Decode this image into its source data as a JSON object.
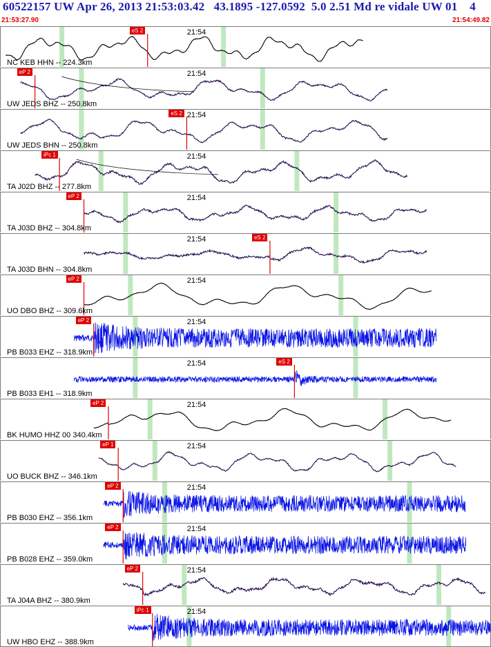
{
  "header": {
    "title": "60522157 UW Apr 26, 2013 21:53:03.42   43.1895 -127.0592  5.0 2.51 Md re vidale UW 01    4",
    "start_time": "21:53:27.90",
    "end_time": "21:54:49.82"
  },
  "colors": {
    "title": "#1a1ab0",
    "times": "#e00000",
    "pick_flag": "#e00000",
    "trace_broadband": "#2a1050",
    "trace_black": "#000000",
    "trace_short_period": "#0a14e6",
    "window_band": "#bfe8bf"
  },
  "panels": [
    {
      "label": "NC KEB HHN -- 224.3km",
      "time_mark": "21:54",
      "pick": "eS 2",
      "color": "black",
      "seed": 3,
      "start": 0.01,
      "end": 0.74,
      "amp": 18,
      "freq": 40,
      "noise": 0.15,
      "pick_at": 0.3,
      "bands": [
        0.12,
        0.45
      ],
      "onset": 0.0
    },
    {
      "label": "UW JEDS BHZ -- 250.8km",
      "time_mark": "21:54",
      "pick": "eP 2",
      "color": "broadband",
      "seed": 5,
      "start": 0.04,
      "end": 0.79,
      "amp": 15,
      "freq": 30,
      "noise": 0.35,
      "pick_at": 0.07,
      "bands": [
        0.16,
        0.53
      ],
      "onset": 0.0,
      "arc": true
    },
    {
      "label": "UW JEDS BHN -- 250.8km",
      "time_mark": "21:54",
      "pick": "eS 2",
      "color": "broadband",
      "seed": 7,
      "start": 0.04,
      "end": 0.79,
      "amp": 16,
      "freq": 30,
      "noise": 0.35,
      "pick_at": 0.38,
      "bands": [
        0.16,
        0.53
      ],
      "onset": 0.0
    },
    {
      "label": "TA J02D BHZ -- 277.8km",
      "time_mark": "21:54",
      "pick": "iPc 1",
      "color": "broadband",
      "seed": 9,
      "start": 0.07,
      "end": 0.83,
      "amp": 16,
      "freq": 32,
      "noise": 0.45,
      "pick_at": 0.12,
      "bands": [
        0.2,
        0.6
      ],
      "onset": 0.0,
      "arc": true
    },
    {
      "label": "TA J03D BHZ -- 304.8km",
      "time_mark": "21:54",
      "pick": "eP 2",
      "color": "broadband",
      "seed": 11,
      "start": 0.17,
      "end": 0.87,
      "amp": 11,
      "freq": 36,
      "noise": 0.45,
      "pick_at": 0.17,
      "bands": [
        0.25,
        0.68
      ],
      "onset": 0.04
    },
    {
      "label": "TA J03D BHN -- 304.8km",
      "time_mark": "21:54",
      "pick": "eS 2",
      "color": "broadband",
      "seed": 13,
      "start": 0.17,
      "end": 0.87,
      "amp": 11,
      "freq": 30,
      "noise": 0.45,
      "pick_at": 0.55,
      "bands": [
        0.25,
        0.68
      ],
      "onset": 0.04
    },
    {
      "label": "UO DBO BHZ -- 309.6km",
      "time_mark": "21:54",
      "pick": "eP 2",
      "color": "black",
      "seed": 15,
      "start": 0.17,
      "end": 0.88,
      "amp": 18,
      "freq": 22,
      "noise": 0.1,
      "pick_at": 0.17,
      "bands": [
        0.26,
        0.69
      ],
      "onset": 0.04
    },
    {
      "label": "PB B033 EHZ -- 318.9km",
      "time_mark": "21:54",
      "pick": "eP 2",
      "color": "sp",
      "seed": 17,
      "start": 0.15,
      "end": 0.89,
      "amp": 14,
      "freq": 260,
      "noise": 1.0,
      "pick_at": 0.19,
      "bands": [
        0.27,
        0.72
      ],
      "onset": 0.04,
      "sp": true
    },
    {
      "label": "PB B033 EH1 -- 318.9km",
      "time_mark": "21:54",
      "pick": "eS 2",
      "color": "sp",
      "seed": 19,
      "start": 0.15,
      "end": 0.89,
      "amp": 6,
      "freq": 260,
      "noise": 1.0,
      "pick_at": 0.6,
      "bands": [
        0.27,
        0.72
      ],
      "onset": 0.04,
      "sp": true,
      "burst": 0.6
    },
    {
      "label": "BK HUMO HHZ 00 340.4km",
      "time_mark": "21:54",
      "pick": "eP 2",
      "color": "black",
      "seed": 21,
      "start": 0.19,
      "end": 0.92,
      "amp": 17,
      "freq": 24,
      "noise": 0.1,
      "pick_at": 0.22,
      "bands": [
        0.3,
        0.78
      ],
      "onset": 0.03
    },
    {
      "label": "UO BUCK BHZ -- 346.1km",
      "time_mark": "21:54",
      "pick": "eP 1",
      "color": "broadband",
      "seed": 23,
      "start": 0.2,
      "end": 0.93,
      "amp": 14,
      "freq": 36,
      "noise": 0.3,
      "pick_at": 0.24,
      "bands": [
        0.31,
        0.79
      ],
      "onset": 0.03
    },
    {
      "label": "PB B030 EHZ -- 356.1km",
      "time_mark": "21:54",
      "pick": "eP 2",
      "color": "sp",
      "seed": 25,
      "start": 0.21,
      "end": 0.95,
      "amp": 12,
      "freq": 260,
      "noise": 1.0,
      "pick_at": 0.25,
      "bands": [
        0.33,
        0.83
      ],
      "onset": 0.03,
      "sp": true
    },
    {
      "label": "PB B028 EHZ -- 359.0km",
      "time_mark": "21:54",
      "pick": "eP 2",
      "color": "sp",
      "seed": 27,
      "start": 0.21,
      "end": 0.95,
      "amp": 13,
      "freq": 260,
      "noise": 1.0,
      "pick_at": 0.25,
      "bands": [
        0.33,
        0.83
      ],
      "onset": 0.03,
      "sp": true
    },
    {
      "label": "TA J04A BHZ -- 380.9km",
      "time_mark": "21:54",
      "pick": "eP 2",
      "color": "broadband",
      "seed": 29,
      "start": 0.25,
      "end": 0.99,
      "amp": 12,
      "freq": 36,
      "noise": 0.55,
      "pick_at": 0.29,
      "bands": [
        0.37,
        0.89
      ],
      "onset": 0.04
    },
    {
      "label": "UW HBO EHZ -- 388.9km",
      "time_mark": "21:54",
      "pick": "iPc 1",
      "color": "sp",
      "seed": 31,
      "start": 0.26,
      "end": 1.0,
      "amp": 12,
      "freq": 260,
      "noise": 1.0,
      "pick_at": 0.31,
      "bands": [
        0.38,
        0.91
      ],
      "onset": 0.02,
      "sp": true
    }
  ]
}
